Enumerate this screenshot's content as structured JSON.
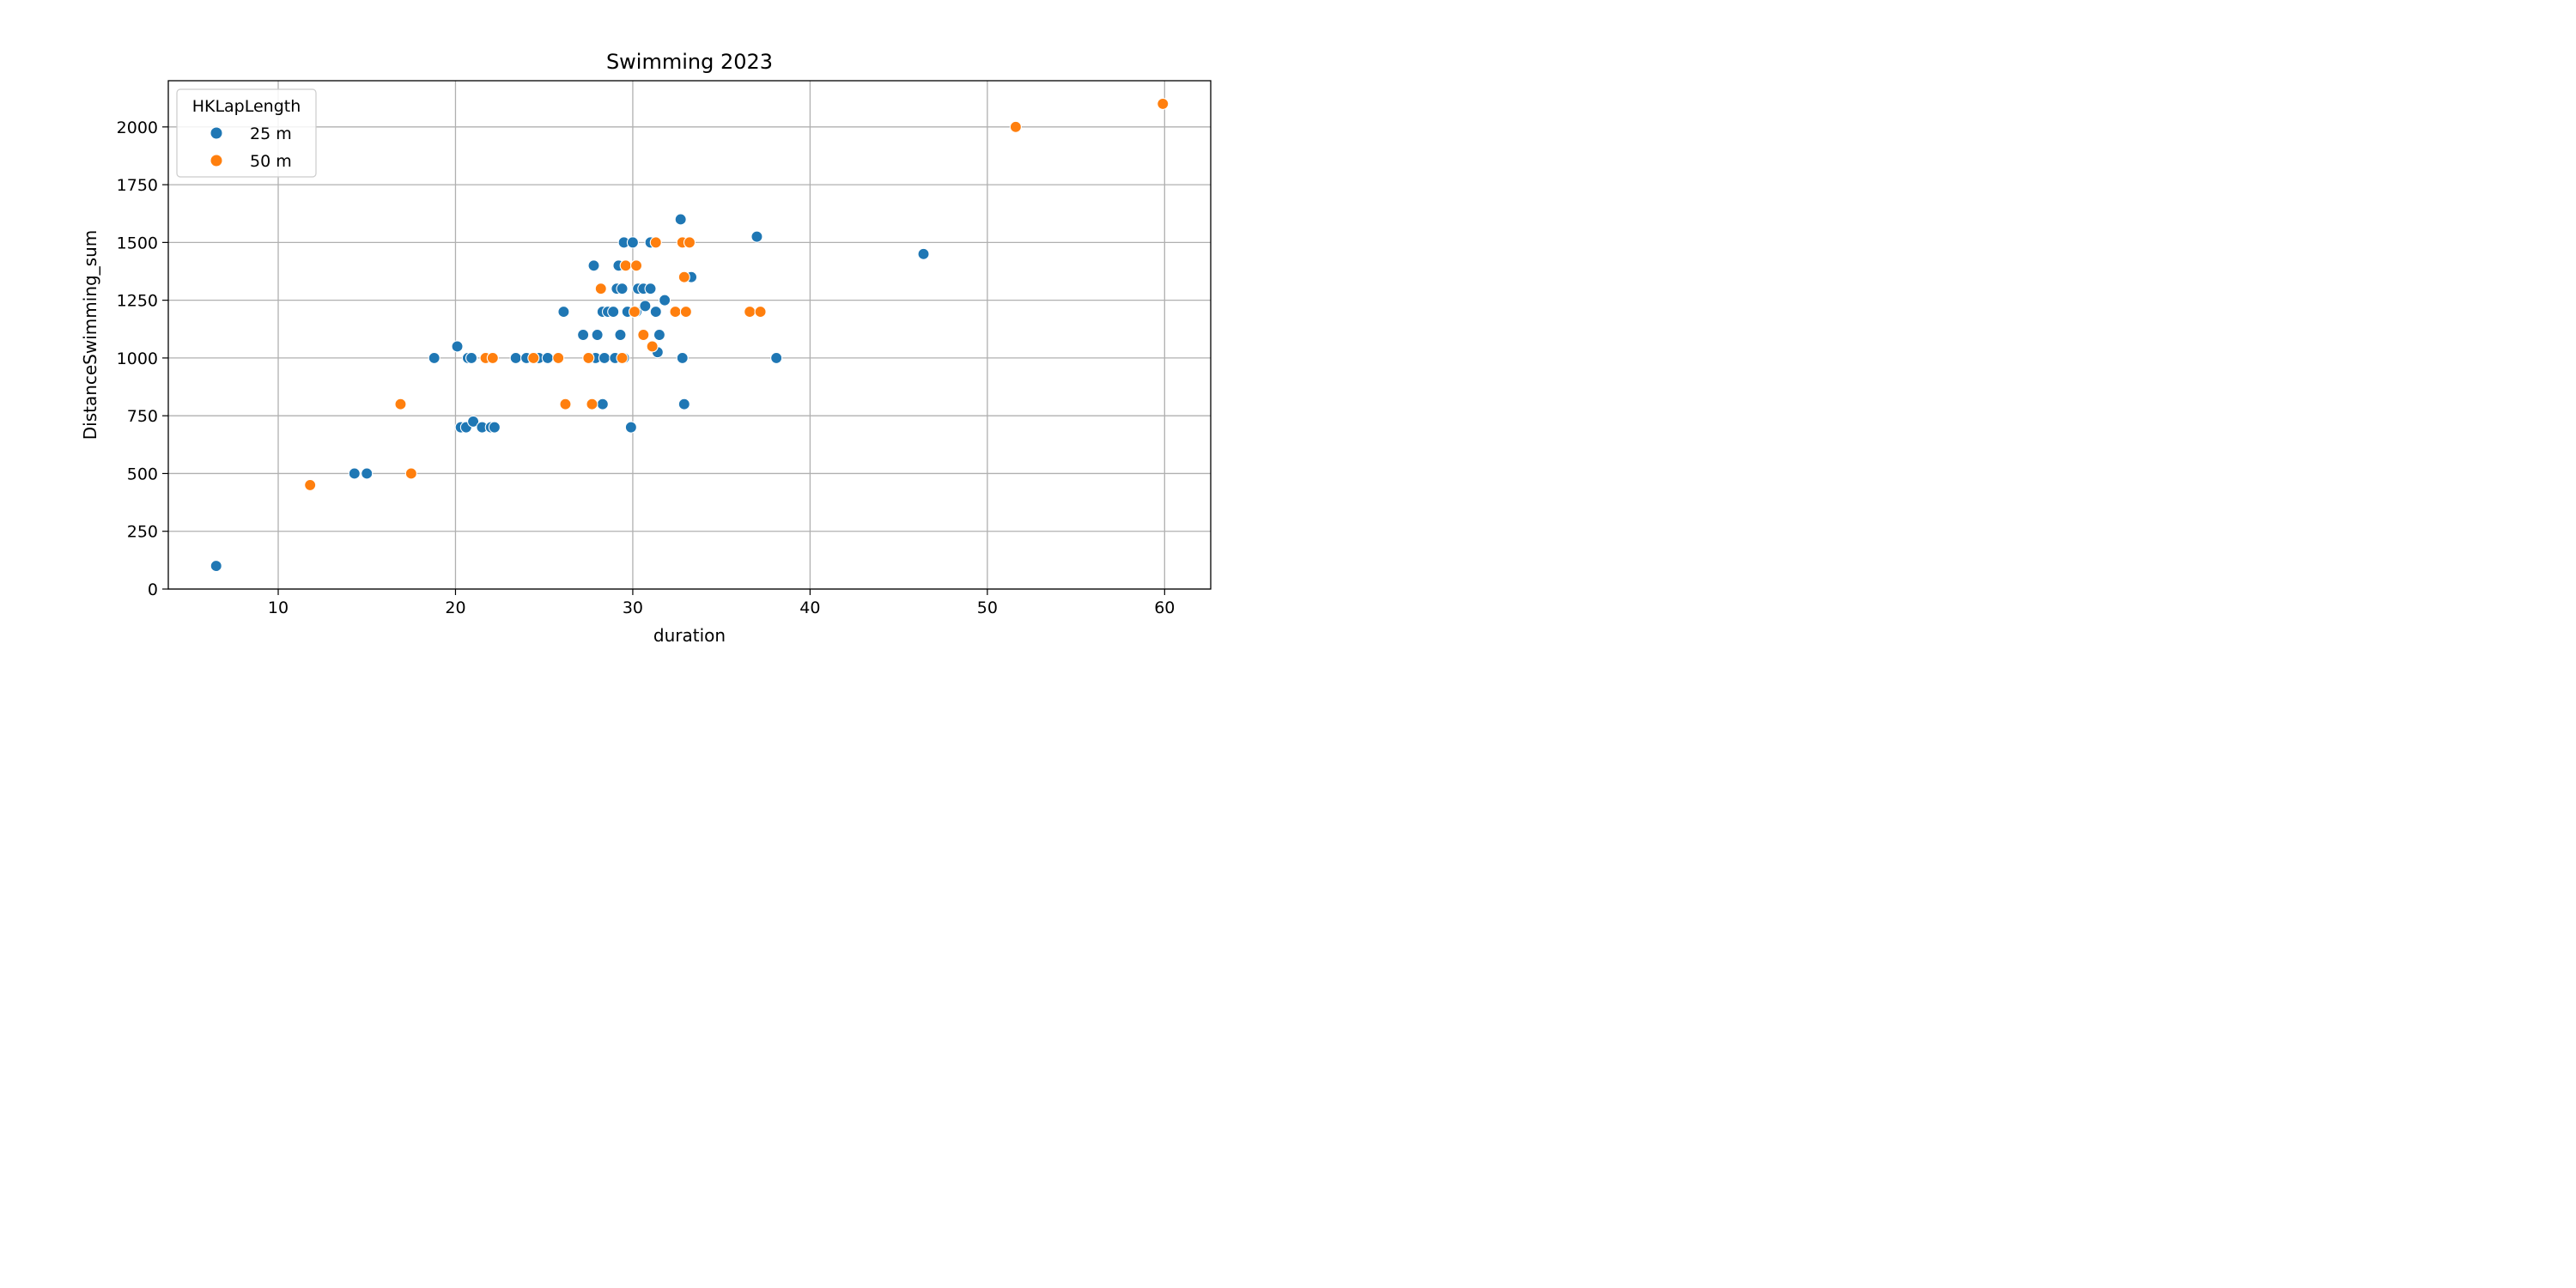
{
  "chart_data": {
    "type": "scatter",
    "title": "Swimming 2023",
    "xlabel": "duration",
    "ylabel": "DistanceSwimming_sum",
    "xlim": [
      3.8,
      62.6
    ],
    "ylim": [
      0,
      2200
    ],
    "xticks": [
      10,
      20,
      30,
      40,
      50,
      60
    ],
    "yticks": [
      0,
      250,
      500,
      750,
      1000,
      1250,
      1500,
      1750,
      2000
    ],
    "grid": true,
    "legend": {
      "title": "HKLapLength",
      "placement": "top-left"
    },
    "series": [
      {
        "name": "25 m",
        "color": "#1f77b4",
        "points": [
          [
            6.5,
            100
          ],
          [
            14.3,
            500
          ],
          [
            15.0,
            500
          ],
          [
            18.8,
            1000
          ],
          [
            20.1,
            1050
          ],
          [
            20.3,
            700
          ],
          [
            20.6,
            700
          ],
          [
            20.7,
            1000
          ],
          [
            20.9,
            1000
          ],
          [
            21.0,
            725
          ],
          [
            21.5,
            700
          ],
          [
            22.0,
            700
          ],
          [
            22.2,
            700
          ],
          [
            23.4,
            1000
          ],
          [
            24.0,
            1000
          ],
          [
            24.5,
            1000
          ],
          [
            24.7,
            1000
          ],
          [
            25.2,
            1000
          ],
          [
            26.1,
            1200
          ],
          [
            27.2,
            1100
          ],
          [
            27.8,
            1400
          ],
          [
            27.9,
            1000
          ],
          [
            28.0,
            1100
          ],
          [
            28.3,
            800
          ],
          [
            28.3,
            1200
          ],
          [
            28.4,
            1000
          ],
          [
            28.6,
            1200
          ],
          [
            28.9,
            1200
          ],
          [
            29.0,
            1000
          ],
          [
            29.1,
            1300
          ],
          [
            29.2,
            1400
          ],
          [
            29.3,
            1100
          ],
          [
            29.4,
            1300
          ],
          [
            29.5,
            1500
          ],
          [
            29.5,
            1000
          ],
          [
            29.7,
            1200
          ],
          [
            29.9,
            700
          ],
          [
            30.0,
            1500
          ],
          [
            30.2,
            1200
          ],
          [
            30.3,
            1300
          ],
          [
            30.6,
            1300
          ],
          [
            30.7,
            1225
          ],
          [
            31.0,
            1300
          ],
          [
            31.0,
            1500
          ],
          [
            31.3,
            1200
          ],
          [
            31.4,
            1025
          ],
          [
            31.5,
            1100
          ],
          [
            31.8,
            1250
          ],
          [
            32.7,
            1600
          ],
          [
            32.8,
            1000
          ],
          [
            32.9,
            800
          ],
          [
            33.3,
            1350
          ],
          [
            37.0,
            1525
          ],
          [
            38.1,
            1000
          ],
          [
            46.4,
            1450
          ]
        ]
      },
      {
        "name": "50 m",
        "color": "#ff7f0e",
        "points": [
          [
            11.8,
            450
          ],
          [
            16.9,
            800
          ],
          [
            17.5,
            500
          ],
          [
            21.7,
            1000
          ],
          [
            22.1,
            1000
          ],
          [
            24.4,
            1000
          ],
          [
            25.8,
            1000
          ],
          [
            26.2,
            800
          ],
          [
            27.5,
            1000
          ],
          [
            27.7,
            800
          ],
          [
            28.2,
            1300
          ],
          [
            29.4,
            1000
          ],
          [
            29.6,
            1400
          ],
          [
            30.1,
            1200
          ],
          [
            30.2,
            1400
          ],
          [
            30.6,
            1100
          ],
          [
            31.1,
            1050
          ],
          [
            31.3,
            1500
          ],
          [
            32.4,
            1200
          ],
          [
            32.8,
            1500
          ],
          [
            32.9,
            1350
          ],
          [
            33.0,
            1200
          ],
          [
            33.2,
            1500
          ],
          [
            36.6,
            1200
          ],
          [
            37.2,
            1200
          ],
          [
            51.6,
            2000
          ],
          [
            59.9,
            2100
          ]
        ]
      }
    ]
  }
}
